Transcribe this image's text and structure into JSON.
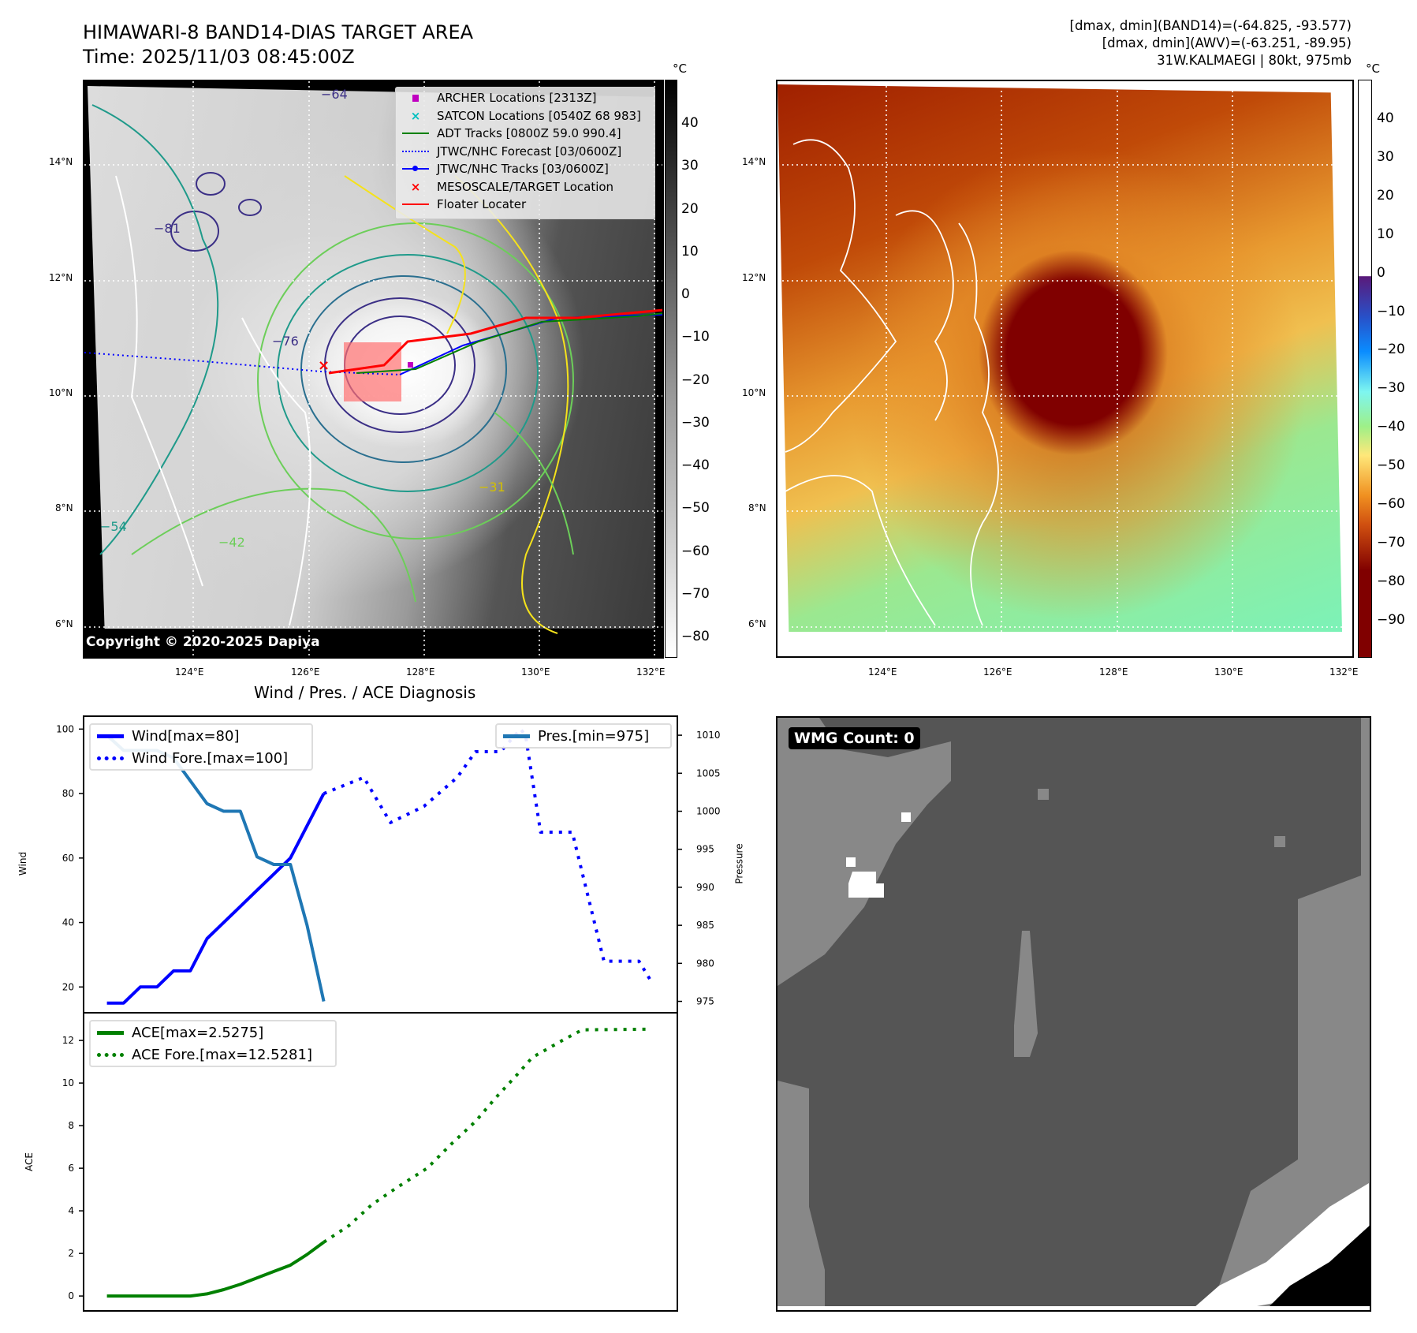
{
  "header": {
    "title_line1": "HIMAWARI-8 BAND14-DIAS TARGET AREA",
    "title_line2": "Time: 2025/11/03 08:45:00Z",
    "stats_band14": "[dmax, dmin](BAND14)=(-64.825, -93.577)",
    "stats_awv": "[dmax, dmin](AWV)=(-63.251, -89.95)",
    "storm_info": "31W.KALMAEGI | 80kt, 975mb"
  },
  "map_left": {
    "unit": "°C",
    "lat_ticks": [
      "14°N",
      "12°N",
      "10°N",
      "8°N",
      "6°N"
    ],
    "lon_ticks": [
      "124°E",
      "126°E",
      "128°E",
      "130°E",
      "132°E"
    ],
    "colorbar_ticks": [
      "40",
      "30",
      "20",
      "10",
      "0",
      "−10",
      "−20",
      "−30",
      "−40",
      "−50",
      "−60",
      "−70",
      "−80"
    ],
    "contour_labels": [
      "−64",
      "−76",
      "−81",
      "−54",
      "−42",
      "−31"
    ],
    "copyright": "Copyright © 2020-2025 Dapiya",
    "legend": [
      {
        "label": "ARCHER Locations [2313Z]",
        "icon": "square-marker",
        "color": "#c000c0"
      },
      {
        "label": "SATCON Locations [0540Z 68 983]",
        "icon": "x-marker",
        "color": "#00bfbf"
      },
      {
        "label": "ADT Tracks [0800Z 59.0 990.4]",
        "icon": "solid-line",
        "color": "#008000"
      },
      {
        "label": "JTWC/NHC Forecast [03/0600Z]",
        "icon": "dotted-line",
        "color": "#0000ff"
      },
      {
        "label": "JTWC/NHC Tracks [03/0600Z]",
        "icon": "line-dot",
        "color": "#0000ff"
      },
      {
        "label": "MESOSCALE/TARGET Location",
        "icon": "x-marker",
        "color": "#ff0000"
      },
      {
        "label": "Floater Locater",
        "icon": "solid-line",
        "color": "#ff0000"
      }
    ]
  },
  "map_right": {
    "unit": "°C",
    "lat_ticks": [
      "14°N",
      "12°N",
      "10°N",
      "8°N",
      "6°N"
    ],
    "lon_ticks": [
      "124°E",
      "126°E",
      "128°E",
      "130°E",
      "132°E"
    ],
    "colorbar_ticks": [
      "40",
      "30",
      "20",
      "10",
      "0",
      "−10",
      "−20",
      "−30",
      "−40",
      "−50",
      "−60",
      "−70",
      "−80",
      "−90"
    ]
  },
  "wmg": {
    "label": "WMG Count: 0"
  },
  "chart_data": [
    {
      "type": "line",
      "title": "Wind / Pres. / ACE Diagnosis",
      "ylabel": "Wind",
      "y2label": "Pressure",
      "ylim": [
        12,
        104
      ],
      "y2lim": [
        973.5,
        1012.5
      ],
      "xlim": [
        -1.4,
        34.2
      ],
      "yticks": [
        "100",
        "80",
        "60",
        "40",
        "20"
      ],
      "y2ticks": [
        "1010",
        "1005",
        "1000",
        "995",
        "990",
        "985",
        "980",
        "975"
      ],
      "series": [
        {
          "name": "Wind[max=80]",
          "color": "#0000ff",
          "style": "solid",
          "axis": "left",
          "x": [
            0,
            1,
            2,
            3,
            4,
            5,
            6,
            7,
            8,
            9,
            10,
            11,
            12,
            13
          ],
          "values": [
            15,
            15,
            20,
            20,
            25,
            25,
            35,
            40,
            45,
            50,
            55,
            60,
            70,
            80
          ]
        },
        {
          "name": "Wind Fore.[max=100]",
          "color": "#0000ff",
          "style": "dotted",
          "axis": "left",
          "x": [
            13,
            15.4,
            17,
            19,
            21,
            22.1,
            23.6,
            24.8,
            25.1,
            26,
            27.9,
            29.8,
            31.9,
            32.6
          ],
          "values": [
            80,
            85,
            71,
            76,
            85,
            93,
            93,
            100,
            98,
            68,
            68,
            28,
            28,
            22
          ]
        },
        {
          "name": "Pres.[min=975]",
          "color": "#1f77b4",
          "style": "solid",
          "axis": "right",
          "x": [
            0,
            1,
            2,
            3,
            4,
            5,
            6,
            7,
            8,
            9,
            10,
            11,
            12,
            13
          ],
          "values": [
            1010,
            1008,
            1008,
            1008,
            1007,
            1004,
            1001,
            1000,
            1000,
            994,
            993,
            993,
            985,
            975
          ]
        }
      ]
    },
    {
      "type": "line",
      "ylabel": "ACE",
      "ylim": [
        -0.7,
        13.3
      ],
      "xlim": [
        -1.4,
        34.2
      ],
      "yticks": [
        "12",
        "10",
        "8",
        "6",
        "4",
        "2",
        "0"
      ],
      "series": [
        {
          "name": "ACE[max=2.5275]",
          "color": "#008000",
          "style": "solid",
          "x": [
            0,
            1,
            2,
            3,
            4,
            5,
            6,
            7,
            8,
            9,
            10,
            11,
            12,
            13
          ],
          "values": [
            0,
            0,
            0,
            0,
            0,
            0,
            0.1,
            0.3,
            0.55,
            0.85,
            1.15,
            1.45,
            1.95,
            2.5275
          ]
        },
        {
          "name": "ACE Fore.[max=12.5281]",
          "color": "#008000",
          "style": "dotted",
          "x": [
            13,
            14.5,
            15.9,
            17.4,
            19.2,
            20.6,
            22.1,
            23.3,
            24.6,
            25.5,
            27.3,
            28.5,
            32.6
          ],
          "values": [
            2.5275,
            3.3,
            4.3,
            5.1,
            6.0,
            7.1,
            8.2,
            9.3,
            10.4,
            11.2,
            12.0,
            12.5,
            12.5281
          ]
        }
      ]
    }
  ]
}
